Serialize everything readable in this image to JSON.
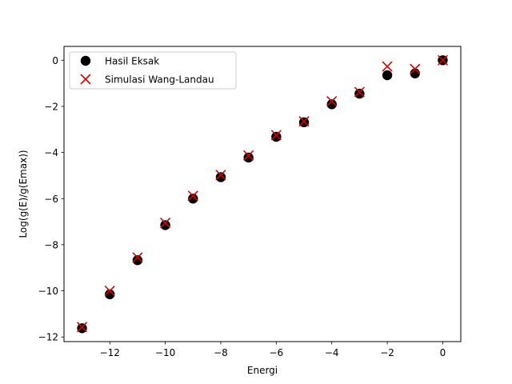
{
  "chart_data": {
    "type": "scatter",
    "title": "",
    "xlabel": "Energi",
    "ylabel": "Log(g(E)/g(Emax))",
    "xlim": [
      -13.65,
      0.65
    ],
    "ylim": [
      -12.2,
      0.6
    ],
    "xticks": [
      -12,
      -10,
      -8,
      -6,
      -4,
      -2,
      0
    ],
    "yticks": [
      -12,
      -10,
      -8,
      -6,
      -4,
      -2,
      0
    ],
    "xtick_labels": [
      "−12",
      "−10",
      "−8",
      "−6",
      "−4",
      "−2",
      "0"
    ],
    "ytick_labels": [
      "−12",
      "−10",
      "−8",
      "−6",
      "−4",
      "−2",
      "0"
    ],
    "grid": false,
    "legend_position": "top-left",
    "series": [
      {
        "name": "Hasil Eksak",
        "marker": "circle",
        "color": "#000000",
        "x": [
          -13,
          -12,
          -11,
          -10,
          -9,
          -8,
          -7,
          -6,
          -5,
          -4,
          -3,
          -2,
          -1,
          0
        ],
        "y": [
          -11.62,
          -10.15,
          -8.67,
          -7.15,
          -6.0,
          -5.07,
          -4.22,
          -3.32,
          -2.69,
          -1.91,
          -1.45,
          -0.65,
          -0.57,
          0.0
        ]
      },
      {
        "name": "Simulasi Wang-Landau",
        "marker": "x",
        "color": "#dd0000",
        "x": [
          -13,
          -12,
          -11,
          -10,
          -9,
          -8,
          -7,
          -6,
          -5,
          -4,
          -3,
          -2,
          -1,
          0
        ],
        "y": [
          -11.57,
          -10.0,
          -8.55,
          -7.05,
          -5.88,
          -4.98,
          -4.13,
          -3.25,
          -2.65,
          -1.78,
          -1.38,
          -0.27,
          -0.38,
          0.0
        ]
      }
    ]
  }
}
